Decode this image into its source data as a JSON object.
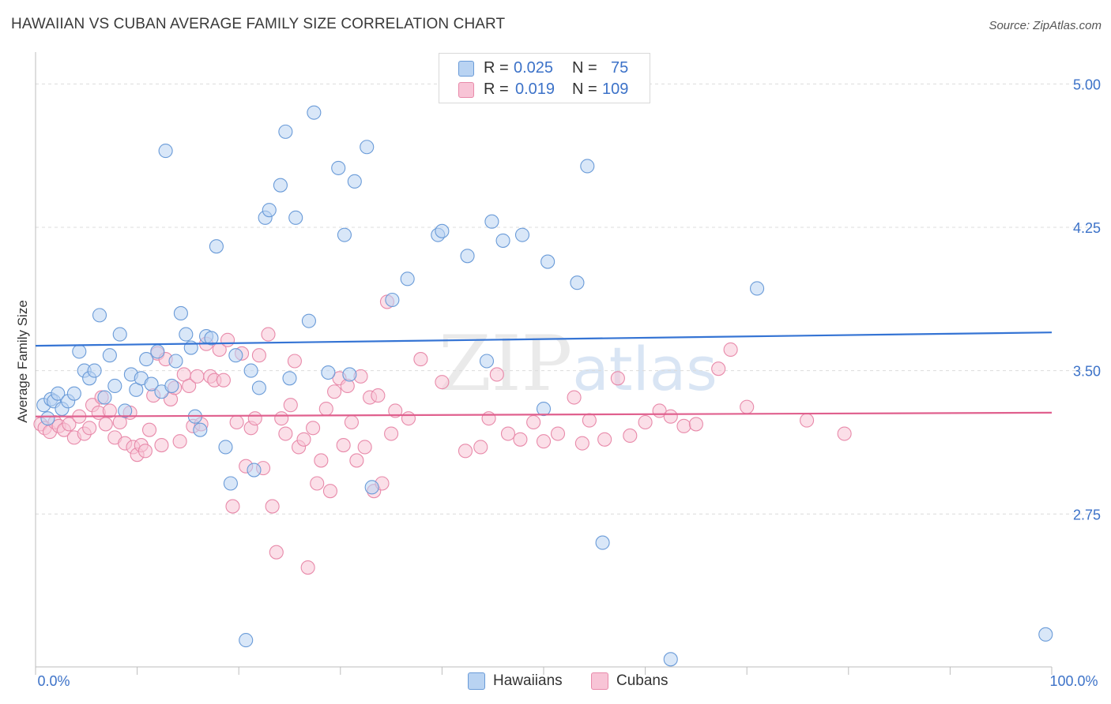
{
  "header": {
    "title": "HAWAIIAN VS CUBAN AVERAGE FAMILY SIZE CORRELATION CHART",
    "source": "Source: ZipAtlas.com"
  },
  "watermark": {
    "zip": "ZIP",
    "atlas": "atlas"
  },
  "legend_box": {
    "rows": [
      {
        "r_label": "R =",
        "r_value": "0.025",
        "n_label": "N =",
        "n_value": "75"
      },
      {
        "r_label": "R =",
        "r_value": "0.019",
        "n_label": "N =",
        "n_value": "109"
      }
    ]
  },
  "colors": {
    "hawaiians_fill": "#b9d3f2",
    "hawaiians_stroke": "#6a9bd8",
    "hawaiians_line": "#3574d4",
    "cubans_fill": "#f8c4d6",
    "cubans_stroke": "#e88aaa",
    "cubans_line": "#e0608e",
    "tick_label": "#3c72c8"
  },
  "chart_data": {
    "type": "scatter",
    "title": "HAWAIIAN VS CUBAN AVERAGE FAMILY SIZE CORRELATION CHART",
    "xlabel": "",
    "ylabel": "Average Family Size",
    "xlim": [
      0,
      100
    ],
    "ylim": [
      1.95,
      5.15
    ],
    "x_tick_labels": [
      "0.0%",
      "100.0%"
    ],
    "y_ticks": [
      2.75,
      3.5,
      4.25,
      5.0
    ],
    "y_tick_labels": [
      "2.75",
      "3.50",
      "4.25",
      "5.00"
    ],
    "legend": [
      "Hawaiians",
      "Cubans"
    ],
    "series": [
      {
        "name": "Hawaiians",
        "r": 0.025,
        "n": 75,
        "trend": [
          [
            0,
            3.63
          ],
          [
            100,
            3.7
          ]
        ],
        "points": [
          [
            0.8,
            3.32
          ],
          [
            1.5,
            3.35
          ],
          [
            1.8,
            3.34
          ],
          [
            2.2,
            3.38
          ],
          [
            2.6,
            3.3
          ],
          [
            3.2,
            3.34
          ],
          [
            3.8,
            3.38
          ],
          [
            4.3,
            3.6
          ],
          [
            4.8,
            3.5
          ],
          [
            5.3,
            3.46
          ],
          [
            5.8,
            3.5
          ],
          [
            6.3,
            3.79
          ],
          [
            6.8,
            3.36
          ],
          [
            7.3,
            3.58
          ],
          [
            7.8,
            3.42
          ],
          [
            8.3,
            3.69
          ],
          [
            8.8,
            3.29
          ],
          [
            9.4,
            3.48
          ],
          [
            9.9,
            3.4
          ],
          [
            10.4,
            3.46
          ],
          [
            10.9,
            3.56
          ],
          [
            11.4,
            3.43
          ],
          [
            12.0,
            3.6
          ],
          [
            12.4,
            3.39
          ],
          [
            12.8,
            4.65
          ],
          [
            13.4,
            3.42
          ],
          [
            13.8,
            3.55
          ],
          [
            14.3,
            3.8
          ],
          [
            14.8,
            3.69
          ],
          [
            15.3,
            3.62
          ],
          [
            15.7,
            3.26
          ],
          [
            16.2,
            3.19
          ],
          [
            16.8,
            3.68
          ],
          [
            17.3,
            3.67
          ],
          [
            17.8,
            4.15
          ],
          [
            18.7,
            3.1
          ],
          [
            19.2,
            2.91
          ],
          [
            19.7,
            3.58
          ],
          [
            20.7,
            2.09
          ],
          [
            21.2,
            3.5
          ],
          [
            21.5,
            2.98
          ],
          [
            22.0,
            3.41
          ],
          [
            22.6,
            4.3
          ],
          [
            23.0,
            4.34
          ],
          [
            24.1,
            4.47
          ],
          [
            24.6,
            4.75
          ],
          [
            25.0,
            3.46
          ],
          [
            25.6,
            4.3
          ],
          [
            26.9,
            3.76
          ],
          [
            27.4,
            4.85
          ],
          [
            28.8,
            3.49
          ],
          [
            29.8,
            4.56
          ],
          [
            30.4,
            4.21
          ],
          [
            30.9,
            3.48
          ],
          [
            31.4,
            4.49
          ],
          [
            32.6,
            4.67
          ],
          [
            33.1,
            2.89
          ],
          [
            35.1,
            3.87
          ],
          [
            36.6,
            3.98
          ],
          [
            39.6,
            4.21
          ],
          [
            40.0,
            4.23
          ],
          [
            42.5,
            4.1
          ],
          [
            44.4,
            3.55
          ],
          [
            44.9,
            4.28
          ],
          [
            46.0,
            4.18
          ],
          [
            47.9,
            4.21
          ],
          [
            50.0,
            3.3
          ],
          [
            50.4,
            4.07
          ],
          [
            53.3,
            3.96
          ],
          [
            54.3,
            4.57
          ],
          [
            55.8,
            2.6
          ],
          [
            62.5,
            1.99
          ],
          [
            71.0,
            3.93
          ],
          [
            99.4,
            2.12
          ],
          [
            1.2,
            3.25
          ]
        ]
      },
      {
        "name": "Cubans",
        "r": 0.019,
        "n": 109,
        "trend": [
          [
            0,
            3.26
          ],
          [
            100,
            3.28
          ]
        ],
        "points": [
          [
            0.5,
            3.22
          ],
          [
            0.9,
            3.2
          ],
          [
            1.4,
            3.18
          ],
          [
            1.9,
            3.23
          ],
          [
            2.3,
            3.21
          ],
          [
            2.8,
            3.19
          ],
          [
            3.3,
            3.22
          ],
          [
            3.8,
            3.15
          ],
          [
            4.3,
            3.26
          ],
          [
            4.8,
            3.17
          ],
          [
            5.3,
            3.2
          ],
          [
            5.6,
            3.32
          ],
          [
            6.2,
            3.28
          ],
          [
            6.5,
            3.36
          ],
          [
            6.9,
            3.22
          ],
          [
            7.3,
            3.29
          ],
          [
            7.8,
            3.15
          ],
          [
            8.3,
            3.23
          ],
          [
            8.8,
            3.12
          ],
          [
            9.3,
            3.28
          ],
          [
            9.6,
            3.1
          ],
          [
            10.0,
            3.06
          ],
          [
            10.4,
            3.11
          ],
          [
            10.8,
            3.08
          ],
          [
            11.2,
            3.19
          ],
          [
            11.6,
            3.37
          ],
          [
            12.0,
            3.59
          ],
          [
            12.4,
            3.11
          ],
          [
            12.8,
            3.56
          ],
          [
            13.3,
            3.35
          ],
          [
            13.7,
            3.41
          ],
          [
            14.2,
            3.13
          ],
          [
            14.6,
            3.48
          ],
          [
            15.1,
            3.42
          ],
          [
            15.5,
            3.21
          ],
          [
            15.9,
            3.47
          ],
          [
            16.3,
            3.22
          ],
          [
            16.8,
            3.64
          ],
          [
            17.2,
            3.47
          ],
          [
            17.6,
            3.45
          ],
          [
            18.1,
            3.61
          ],
          [
            18.5,
            3.45
          ],
          [
            18.9,
            3.66
          ],
          [
            19.4,
            2.79
          ],
          [
            19.8,
            3.23
          ],
          [
            20.3,
            3.59
          ],
          [
            20.7,
            3.0
          ],
          [
            21.2,
            3.2
          ],
          [
            21.6,
            3.25
          ],
          [
            22.0,
            3.58
          ],
          [
            22.4,
            2.99
          ],
          [
            22.9,
            3.69
          ],
          [
            23.3,
            2.79
          ],
          [
            23.7,
            2.55
          ],
          [
            24.2,
            3.25
          ],
          [
            24.6,
            3.17
          ],
          [
            25.1,
            3.32
          ],
          [
            25.5,
            3.55
          ],
          [
            25.9,
            3.1
          ],
          [
            26.4,
            3.14
          ],
          [
            26.8,
            2.47
          ],
          [
            27.3,
            3.2
          ],
          [
            27.7,
            2.91
          ],
          [
            28.1,
            3.03
          ],
          [
            28.6,
            3.3
          ],
          [
            29.0,
            2.87
          ],
          [
            29.4,
            3.39
          ],
          [
            29.9,
            3.46
          ],
          [
            30.3,
            3.11
          ],
          [
            30.7,
            3.42
          ],
          [
            31.1,
            3.23
          ],
          [
            31.6,
            3.03
          ],
          [
            32.0,
            3.47
          ],
          [
            32.4,
            3.1
          ],
          [
            32.9,
            3.36
          ],
          [
            33.3,
            2.87
          ],
          [
            33.7,
            3.37
          ],
          [
            34.1,
            2.91
          ],
          [
            34.6,
            3.86
          ],
          [
            35.0,
            3.17
          ],
          [
            35.4,
            3.29
          ],
          [
            36.7,
            3.25
          ],
          [
            37.9,
            3.56
          ],
          [
            40.0,
            3.44
          ],
          [
            42.3,
            3.08
          ],
          [
            43.8,
            3.1
          ],
          [
            44.6,
            3.25
          ],
          [
            45.4,
            3.48
          ],
          [
            46.5,
            3.17
          ],
          [
            47.7,
            3.14
          ],
          [
            49.0,
            3.23
          ],
          [
            50.0,
            3.13
          ],
          [
            51.4,
            3.17
          ],
          [
            53.0,
            3.36
          ],
          [
            53.8,
            3.12
          ],
          [
            54.5,
            3.24
          ],
          [
            56.0,
            3.14
          ],
          [
            57.3,
            3.46
          ],
          [
            58.5,
            3.16
          ],
          [
            60.0,
            3.23
          ],
          [
            61.4,
            3.29
          ],
          [
            62.5,
            3.26
          ],
          [
            63.8,
            3.21
          ],
          [
            65.0,
            3.22
          ],
          [
            67.2,
            3.51
          ],
          [
            68.4,
            3.61
          ],
          [
            70.0,
            3.31
          ],
          [
            75.9,
            3.24
          ],
          [
            79.6,
            3.17
          ]
        ]
      }
    ]
  }
}
